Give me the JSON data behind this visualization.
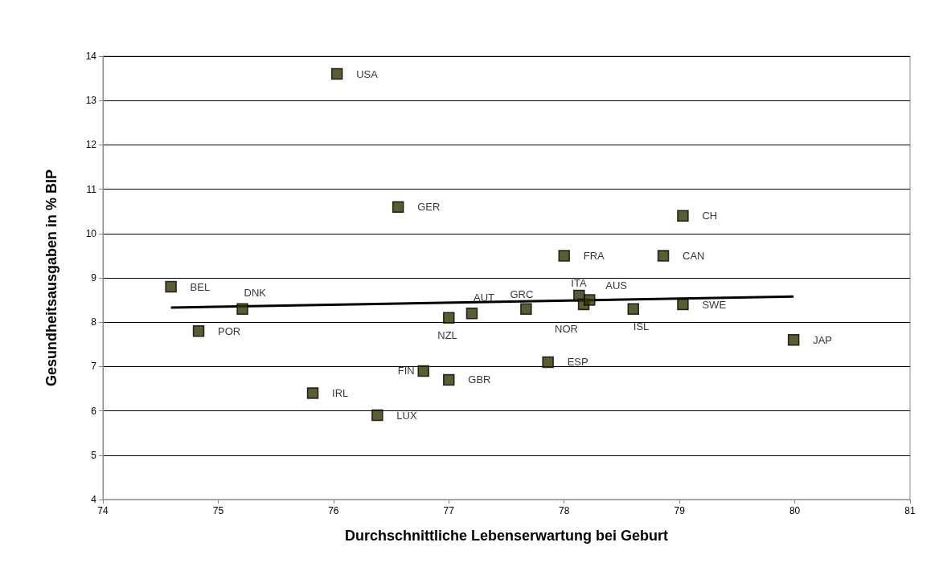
{
  "chart_data": {
    "type": "scatter",
    "xlabel": "Durchschnittliche Lebenserwartung bei Geburt",
    "ylabel": "Gesundheitsausgaben in % BIP",
    "xlim": [
      74,
      81
    ],
    "xticks": [
      74,
      75,
      76,
      77,
      78,
      79,
      80,
      81
    ],
    "ylim": [
      4,
      14
    ],
    "yticks": [
      4,
      5,
      6,
      7,
      8,
      9,
      10,
      11,
      12,
      13,
      14
    ],
    "grid": "y",
    "marker": "square",
    "series": [
      {
        "color": "#333300",
        "x": [
          76.03,
          76.56,
          79.03,
          78.0,
          78.86,
          74.59,
          75.21,
          74.83,
          77.0,
          77.2,
          77.67,
          78.13,
          78.17,
          78.22,
          78.6,
          79.03,
          79.99,
          77.86,
          76.78,
          77.0,
          75.82,
          76.38
        ],
        "values": [
          13.6,
          10.6,
          10.4,
          9.5,
          9.5,
          8.8,
          8.3,
          7.8,
          8.1,
          8.2,
          8.3,
          8.6,
          8.4,
          8.5,
          8.3,
          8.4,
          7.6,
          7.1,
          6.9,
          6.7,
          6.4,
          5.9
        ]
      },
      {
        "type": "line",
        "color": "#000000",
        "marker": "none",
        "x": [
          74.59,
          79.99
        ],
        "values": [
          8.33,
          8.58
        ]
      }
    ],
    "annotations": [
      {
        "text": "USA",
        "x": 76.03,
        "y": 13.6
      },
      {
        "text": "GER",
        "x": 76.56,
        "y": 10.6
      },
      {
        "text": "CH",
        "x": 79.03,
        "y": 10.4
      },
      {
        "text": "FRA",
        "x": 78.0,
        "y": 9.5
      },
      {
        "text": "CAN",
        "x": 78.86,
        "y": 9.5
      },
      {
        "text": "BEL",
        "x": 74.59,
        "y": 8.8
      },
      {
        "text": "DNK",
        "x": 75.21,
        "y": 8.3
      },
      {
        "text": "POR",
        "x": 74.83,
        "y": 7.8
      },
      {
        "text": "NZL",
        "x": 77.0,
        "y": 8.1
      },
      {
        "text": "AUT",
        "x": 77.2,
        "y": 8.2
      },
      {
        "text": "GRC",
        "x": 77.67,
        "y": 8.3
      },
      {
        "text": "ITA",
        "x": 78.13,
        "y": 8.6
      },
      {
        "text": "NOR",
        "x": 78.17,
        "y": 8.4
      },
      {
        "text": "AUS",
        "x": 78.22,
        "y": 8.5
      },
      {
        "text": "ISL",
        "x": 78.6,
        "y": 8.3
      },
      {
        "text": "SWE",
        "x": 79.03,
        "y": 8.4
      },
      {
        "text": "JAP",
        "x": 79.99,
        "y": 7.6
      },
      {
        "text": "ESP",
        "x": 77.86,
        "y": 7.1
      },
      {
        "text": "FIN",
        "x": 76.78,
        "y": 6.9
      },
      {
        "text": "GBR",
        "x": 77.0,
        "y": 6.7
      },
      {
        "text": "IRL",
        "x": 75.82,
        "y": 6.4
      },
      {
        "text": "LUX",
        "x": 76.38,
        "y": 5.9
      }
    ]
  }
}
